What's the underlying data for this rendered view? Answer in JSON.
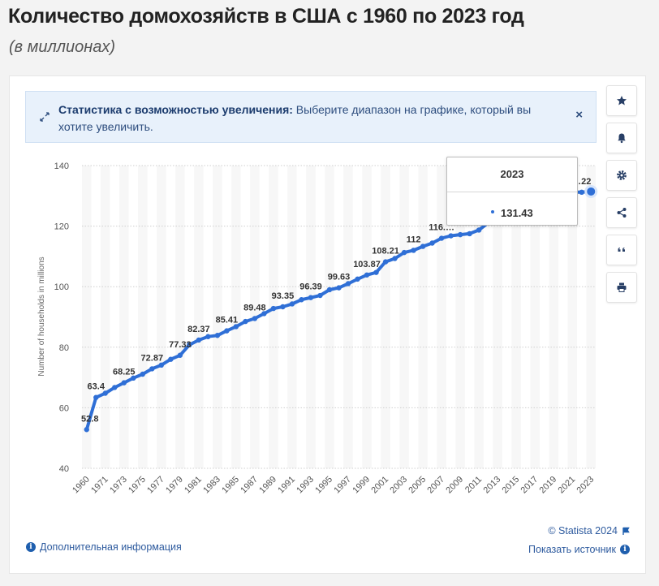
{
  "header": {
    "title": "Количество домохозяйств в США с 1960 по 2023 год",
    "subtitle": "(в миллионах)"
  },
  "banner": {
    "bold": "Статистика с возможностью увеличения:",
    "text": " Выберите диапазон на графике, который вы хотите увеличить.",
    "close": "×"
  },
  "toolbar": {
    "buttons": [
      "star-icon",
      "bell-icon",
      "gear-icon",
      "share-icon",
      "quote-icon",
      "print-icon"
    ]
  },
  "tooltip": {
    "year": "2023",
    "value": "131.43"
  },
  "footer": {
    "more_info": "Дополнительная информация",
    "copyright": "© Statista 2024",
    "show_source": "Показать источник"
  },
  "colors": {
    "line": "#2f6fd6",
    "banner_bg": "#e8f1fb",
    "link": "#2d5a9e"
  },
  "chart_data": {
    "type": "line",
    "ylabel": "Number of households in millions",
    "xlabel": "",
    "ylim": [
      40,
      140
    ],
    "yticks": [
      40,
      60,
      80,
      100,
      120,
      140
    ],
    "xtick_labels": [
      "1960",
      "1971",
      "1973",
      "1975",
      "1977",
      "1979",
      "1981",
      "1983",
      "1985",
      "1987",
      "1989",
      "1991",
      "1993",
      "1995",
      "1997",
      "1999",
      "2001",
      "2003",
      "2005",
      "2007",
      "2009",
      "2011",
      "2013",
      "2015",
      "2017",
      "2019",
      "2021",
      "2023"
    ],
    "grid": true,
    "series": [
      {
        "x": [
          "1960",
          "1970",
          "1971",
          "1972",
          "1973",
          "1974",
          "1975",
          "1976",
          "1977",
          "1978",
          "1979",
          "1980",
          "1981",
          "1982",
          "1983",
          "1984",
          "1985",
          "1986",
          "1987",
          "1988",
          "1989",
          "1990",
          "1991",
          "1992",
          "1993",
          "1994",
          "1995",
          "1996",
          "1997",
          "1998",
          "1999",
          "2000",
          "2001",
          "2002",
          "2003",
          "2004",
          "2005",
          "2006",
          "2007",
          "2008",
          "2009",
          "2010",
          "2011",
          "2012",
          "2013",
          "2014",
          "2015",
          "2016",
          "2017",
          "2018",
          "2019",
          "2020",
          "2021",
          "2022",
          "2023"
        ],
        "values": [
          52.8,
          63.4,
          64.8,
          66.7,
          68.25,
          69.8,
          71.1,
          72.87,
          74.1,
          76.0,
          77.33,
          80.8,
          82.37,
          83.5,
          83.9,
          85.41,
          86.8,
          88.5,
          89.48,
          91.1,
          92.8,
          93.35,
          94.3,
          95.7,
          96.39,
          97.1,
          98.99,
          99.63,
          101.0,
          102.5,
          103.87,
          104.7,
          108.21,
          109.3,
          111.28,
          112.0,
          113.3,
          114.4,
          116.0,
          116.8,
          117.18,
          117.5,
          118.7,
          121.1,
          122.5,
          123.2,
          124.6,
          125.8,
          127.6,
          128.6,
          128.5,
          129.9,
          131.2,
          131.2,
          131.43
        ]
      }
    ],
    "data_labels": [
      {
        "x": "1960",
        "text": "52.8"
      },
      {
        "x": "1970",
        "text": "63.4"
      },
      {
        "x": "1973",
        "text": "68.25"
      },
      {
        "x": "1976",
        "text": "72.87"
      },
      {
        "x": "1979",
        "text": "77.33"
      },
      {
        "x": "1981",
        "text": "82.37"
      },
      {
        "x": "1984",
        "text": "85.41"
      },
      {
        "x": "1987",
        "text": "89.48"
      },
      {
        "x": "1990",
        "text": "93.35"
      },
      {
        "x": "1993",
        "text": "96.39"
      },
      {
        "x": "1996",
        "text": "99.63"
      },
      {
        "x": "1999",
        "text": "103.87"
      },
      {
        "x": "2001",
        "text": "108.21"
      },
      {
        "x": "2004",
        "text": "112"
      },
      {
        "x": "2007",
        "text": "116.…"
      },
      {
        "x": "2022",
        "text": "…22"
      }
    ]
  }
}
